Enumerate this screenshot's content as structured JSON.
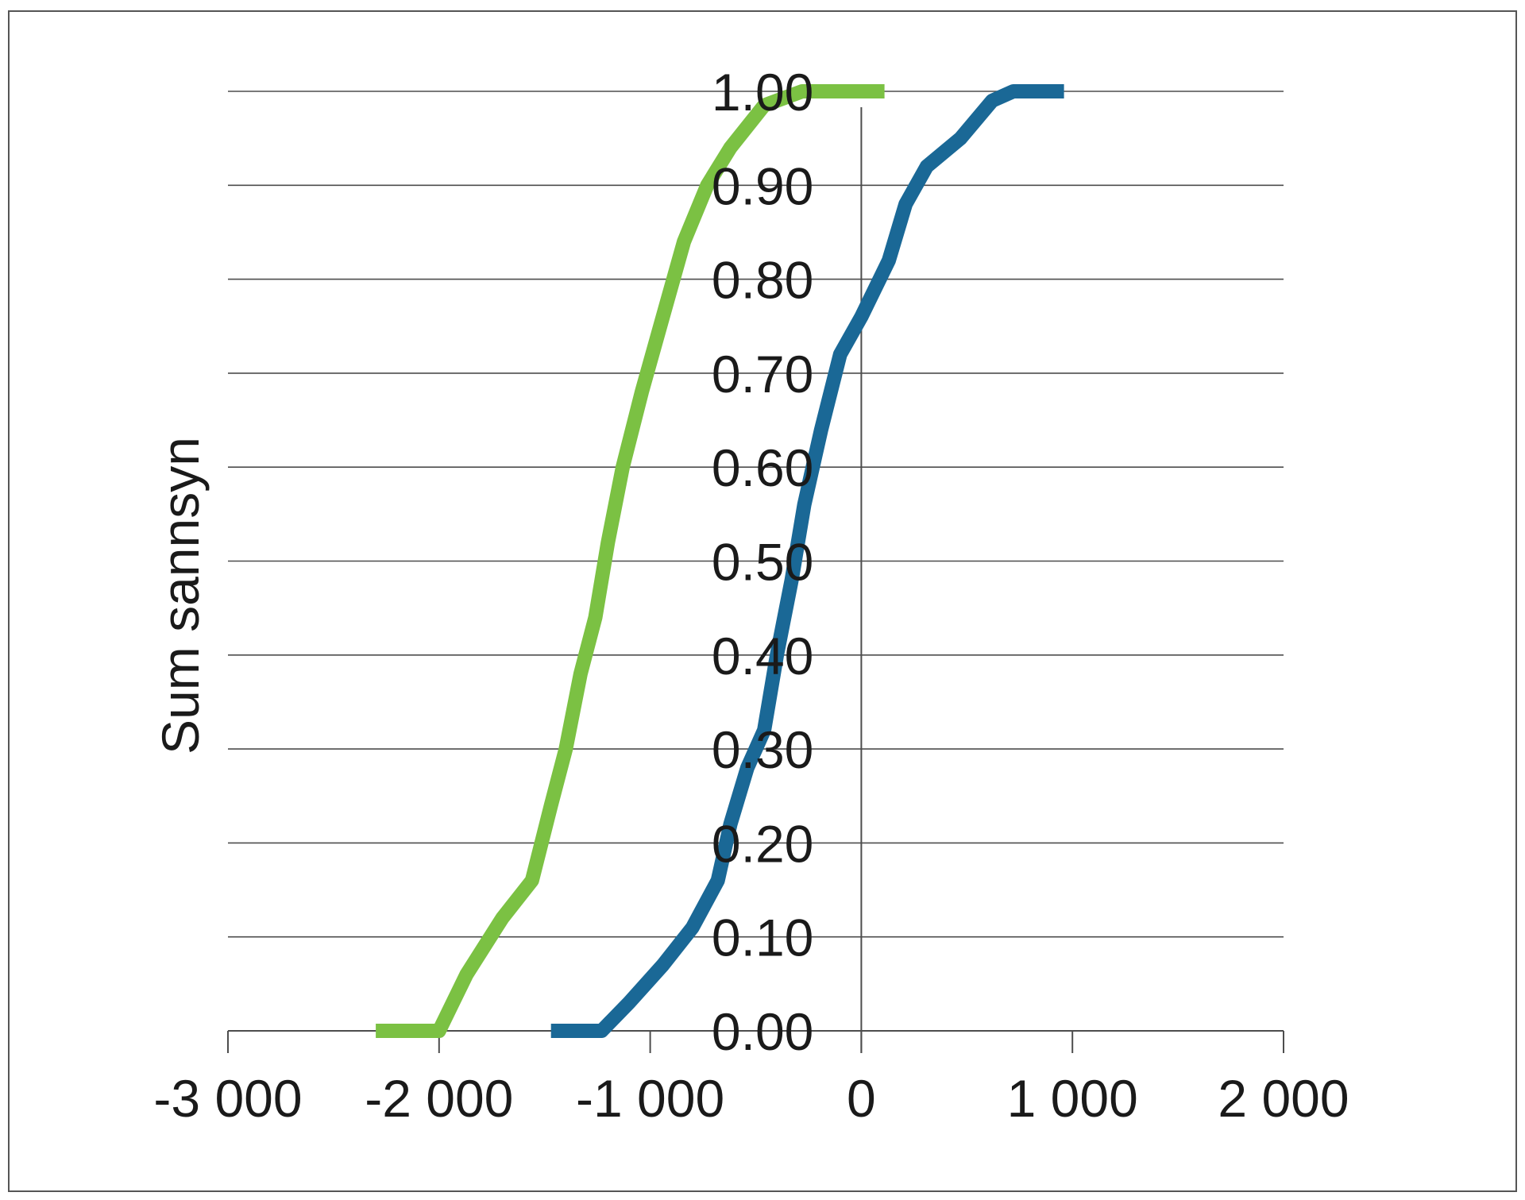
{
  "chart_data": {
    "type": "line",
    "title": "",
    "xlabel": "",
    "ylabel": "Sum sannsyn",
    "xlim": [
      -3000,
      2000
    ],
    "ylim": [
      0,
      1
    ],
    "grid": true,
    "x_ticks": [
      -3000,
      -2000,
      -1000,
      0,
      1000,
      2000
    ],
    "x_tick_labels": [
      "-3 000",
      "-2 000",
      "-1 000",
      "0",
      "1 000",
      "2 000"
    ],
    "y_ticks": [
      0,
      0.1,
      0.2,
      0.3,
      0.4,
      0.5,
      0.6,
      0.7,
      0.8,
      0.9,
      1.0
    ],
    "y_tick_labels": [
      "0.00",
      "0.10",
      "0.20",
      "0.30",
      "0.40",
      "0.50",
      "0.60",
      "0.70",
      "0.80",
      "0.90",
      "1.00"
    ],
    "series": [
      {
        "color": "#7bc143",
        "points": [
          [
            -2300,
            0.0
          ],
          [
            -2000,
            0.0
          ],
          [
            -1870,
            0.06
          ],
          [
            -1700,
            0.12
          ],
          [
            -1560,
            0.16
          ],
          [
            -1470,
            0.24
          ],
          [
            -1400,
            0.3
          ],
          [
            -1330,
            0.38
          ],
          [
            -1260,
            0.44
          ],
          [
            -1200,
            0.52
          ],
          [
            -1130,
            0.6
          ],
          [
            -1040,
            0.68
          ],
          [
            -940,
            0.76
          ],
          [
            -840,
            0.84
          ],
          [
            -730,
            0.9
          ],
          [
            -620,
            0.94
          ],
          [
            -460,
            0.985
          ],
          [
            -280,
            1.0
          ],
          [
            -150,
            1.0
          ],
          [
            110,
            1.0
          ]
        ]
      },
      {
        "color": "#1a6896",
        "points": [
          [
            -1470,
            0.0
          ],
          [
            -1230,
            0.0
          ],
          [
            -1100,
            0.03
          ],
          [
            -940,
            0.07
          ],
          [
            -800,
            0.11
          ],
          [
            -680,
            0.16
          ],
          [
            -620,
            0.22
          ],
          [
            -540,
            0.28
          ],
          [
            -460,
            0.32
          ],
          [
            -400,
            0.4
          ],
          [
            -330,
            0.48
          ],
          [
            -270,
            0.56
          ],
          [
            -190,
            0.64
          ],
          [
            -100,
            0.72
          ],
          [
            0,
            0.76
          ],
          [
            130,
            0.82
          ],
          [
            210,
            0.88
          ],
          [
            310,
            0.92
          ],
          [
            470,
            0.95
          ],
          [
            620,
            0.99
          ],
          [
            720,
            1.0
          ],
          [
            960,
            1.0
          ]
        ]
      }
    ]
  }
}
